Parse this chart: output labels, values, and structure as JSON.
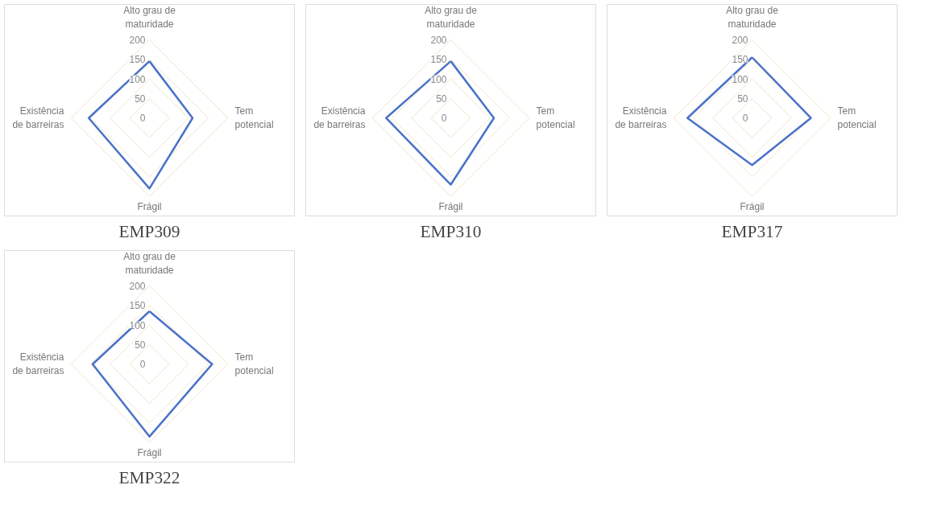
{
  "chart_data": [
    {
      "type": "radar",
      "title": "EMP309",
      "categories": [
        "Alto grau de maturidade",
        "Tem potencial",
        "Frágil",
        "Existência de barreiras"
      ],
      "ylim": [
        0,
        200
      ],
      "yticks": [
        0,
        50,
        100,
        150,
        200
      ],
      "grid": true,
      "series": [
        {
          "color": "#4a72c8",
          "values": [
            145,
            110,
            180,
            155
          ]
        }
      ]
    },
    {
      "type": "radar",
      "title": "EMP310",
      "categories": [
        "Alto grau de maturidade",
        "Tem potencial",
        "Frágil",
        "Existência de barreiras"
      ],
      "ylim": [
        0,
        200
      ],
      "yticks": [
        0,
        50,
        100,
        150,
        200
      ],
      "grid": true,
      "series": [
        {
          "color": "#4a72c8",
          "values": [
            145,
            110,
            170,
            165
          ]
        }
      ]
    },
    {
      "type": "radar",
      "title": "EMP317",
      "categories": [
        "Alto grau de maturidade",
        "Tem potencial",
        "Frágil",
        "Existência de barreiras"
      ],
      "ylim": [
        0,
        200
      ],
      "yticks": [
        0,
        50,
        100,
        150,
        200
      ],
      "grid": true,
      "series": [
        {
          "color": "#4a72c8",
          "values": [
            155,
            150,
            120,
            165
          ]
        }
      ]
    },
    {
      "type": "radar",
      "title": "EMP322",
      "categories": [
        "Alto grau de maturidade",
        "Tem potencial",
        "Frágil",
        "Existência de barreiras"
      ],
      "ylim": [
        0,
        200
      ],
      "yticks": [
        0,
        50,
        100,
        150,
        200
      ],
      "grid": true,
      "series": [
        {
          "color": "#4a72c8",
          "values": [
            135,
            160,
            185,
            145
          ]
        }
      ]
    }
  ]
}
